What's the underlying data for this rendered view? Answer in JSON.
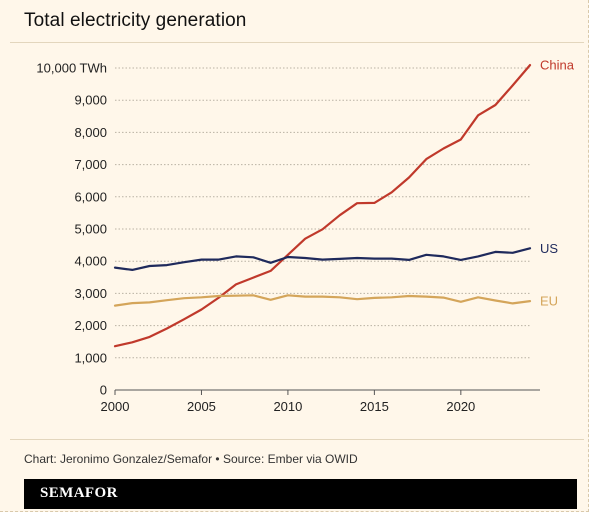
{
  "title": "Total electricity generation",
  "source": "Chart: Jeronimo Gonzalez/Semafor • Source: Ember via OWID",
  "brand": "SEMAFOR",
  "colors": {
    "background": "#fff7ea",
    "China": "#c0392b",
    "US": "#1f2a5c",
    "EU": "#d4a55a",
    "grid": "#b9b2a4"
  },
  "chart_data": {
    "type": "line",
    "title": "Total electricity generation",
    "xlabel": "",
    "ylabel": "",
    "x": [
      2000,
      2001,
      2002,
      2003,
      2004,
      2005,
      2006,
      2007,
      2008,
      2009,
      2010,
      2011,
      2012,
      2013,
      2014,
      2015,
      2016,
      2017,
      2018,
      2019,
      2020,
      2021,
      2022,
      2023,
      2024
    ],
    "xlim": [
      2000,
      2024
    ],
    "ylim": [
      0,
      10000
    ],
    "yticks": [
      0,
      1000,
      2000,
      3000,
      4000,
      5000,
      6000,
      7000,
      8000,
      9000,
      10000
    ],
    "ytick_labels": [
      "0",
      "1,000",
      "2,000",
      "3,000",
      "4,000",
      "5,000",
      "6,000",
      "7,000",
      "8,000",
      "9,000",
      "10,000 TWh"
    ],
    "xticks": [
      2000,
      2005,
      2010,
      2015,
      2020
    ],
    "xtick_labels": [
      "2000",
      "2005",
      "2010",
      "2015",
      "2020"
    ],
    "grid": true,
    "series": [
      {
        "name": "China",
        "values": [
          1360,
          1480,
          1650,
          1910,
          2200,
          2500,
          2870,
          3280,
          3490,
          3700,
          4200,
          4700,
          4990,
          5430,
          5800,
          5810,
          6140,
          6600,
          7170,
          7500,
          7780,
          8530,
          8850,
          9460,
          10090
        ]
      },
      {
        "name": "US",
        "values": [
          3800,
          3730,
          3850,
          3880,
          3970,
          4050,
          4050,
          4150,
          4120,
          3950,
          4130,
          4100,
          4050,
          4070,
          4100,
          4080,
          4080,
          4040,
          4200,
          4150,
          4040,
          4150,
          4290,
          4260,
          4400
        ]
      },
      {
        "name": "EU",
        "values": [
          2620,
          2700,
          2720,
          2790,
          2850,
          2880,
          2920,
          2930,
          2940,
          2800,
          2940,
          2900,
          2900,
          2880,
          2820,
          2860,
          2880,
          2920,
          2900,
          2870,
          2740,
          2880,
          2780,
          2690,
          2760
        ]
      }
    ]
  }
}
